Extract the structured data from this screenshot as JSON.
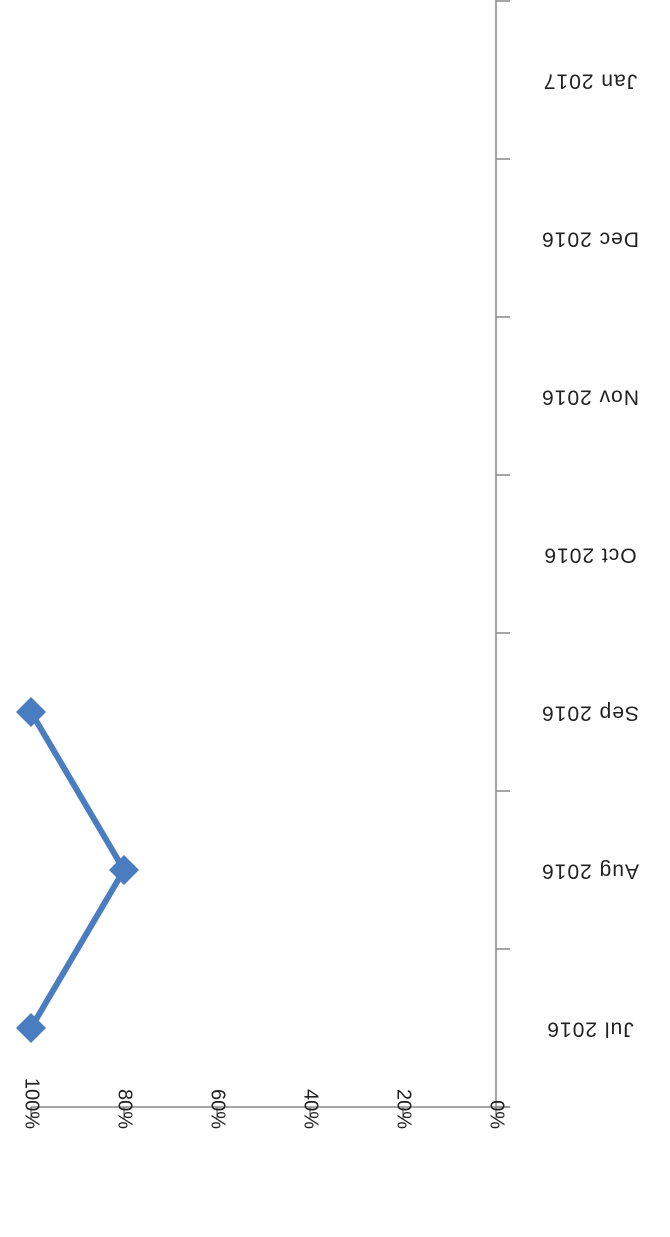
{
  "chart_data": {
    "type": "line",
    "orientation": "rotated 180 degrees (image displayed upside down)",
    "categories": [
      "Jul 2016",
      "Aug 2016",
      "Sep 2016",
      "Oct 2016",
      "Nov 2016",
      "Dec 2016",
      "Jan 2017"
    ],
    "series": [
      {
        "values": [
          100,
          80,
          100,
          null,
          null,
          null,
          null
        ]
      }
    ],
    "ylim": [
      0,
      100
    ],
    "yticks": [
      "0%",
      "20%",
      "40%",
      "60%",
      "80%",
      "100%"
    ],
    "ytick_values": [
      0,
      20,
      40,
      60,
      80,
      100
    ],
    "grid": false,
    "legend": "none",
    "colors": {
      "series": "#4a7dc0",
      "axis": "#888888",
      "text": "#222222"
    }
  }
}
